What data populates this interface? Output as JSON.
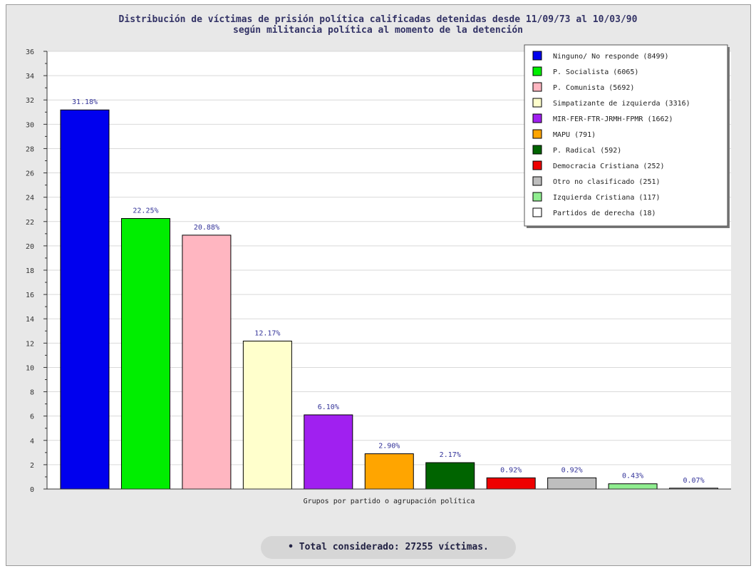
{
  "chart_data": {
    "type": "bar",
    "title_line1": "Distribución de víctimas de prisión política calificadas detenidas desde 11/09/73 al 10/03/90",
    "title_line2": "según militancia política al momento de la detención",
    "xlabel": "Grupos por partido o agrupación política",
    "ylabel": "",
    "ylim": [
      0,
      36
    ],
    "yticks": [
      0,
      2,
      4,
      6,
      8,
      10,
      12,
      14,
      16,
      18,
      20,
      22,
      24,
      26,
      28,
      30,
      32,
      34,
      36
    ],
    "grid": true,
    "legend_position": "top-right",
    "categories": [
      "Ninguno/ No responde (8499)",
      "P. Socialista (6065)",
      "P. Comunista (5692)",
      "Simpatizante de izquierda (3316)",
      "MIR-FER-FTR-JRMH-FPMR (1662)",
      "MAPU (791)",
      "P. Radical (592)",
      "Democracia Cristiana (252)",
      "Otro no clasificado (251)",
      "Izquierda Cristiana (117)",
      "Partidos de derecha (18)"
    ],
    "values": [
      31.18,
      22.25,
      20.88,
      12.17,
      6.1,
      2.9,
      2.17,
      0.92,
      0.92,
      0.43,
      0.07
    ],
    "value_labels": [
      "31.18%",
      "22.25%",
      "20.88%",
      "12.17%",
      "6.10%",
      "2.90%",
      "2.17%",
      "0.92%",
      "0.92%",
      "0.43%",
      "0.07%"
    ],
    "colors": [
      "#0000ee",
      "#00ee00",
      "#ffb6c1",
      "#ffffcc",
      "#a020f0",
      "#ffa500",
      "#006400",
      "#ee0000",
      "#bebebe",
      "#90ee90",
      "#ffffff"
    ],
    "footer": "• Total considerado: 27255 víctimas."
  }
}
